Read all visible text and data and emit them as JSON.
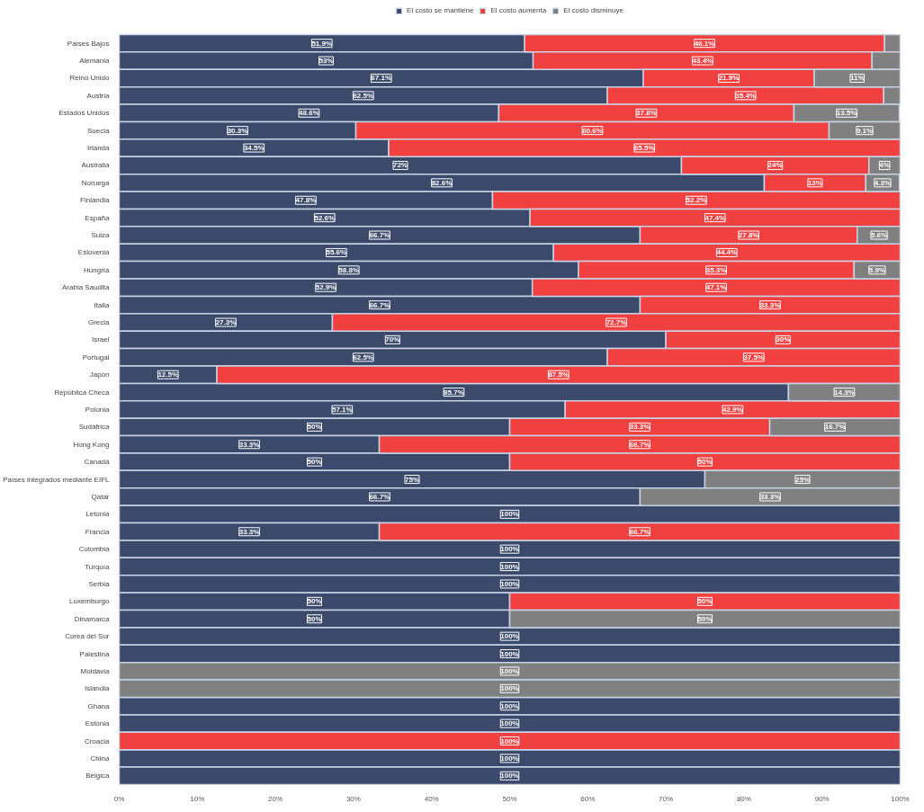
{
  "chart_data": {
    "type": "bar",
    "orientation": "horizontal",
    "stacked": true,
    "legend": "top",
    "categories": [
      "Países Bajos",
      "Alemania",
      "Reino Unido",
      "Austria",
      "Estados Unidos",
      "Suecia",
      "Irlanda",
      "Australia",
      "Noruega",
      "Finlandia",
      "España",
      "Suiza",
      "Eslovenia",
      "Hungría",
      "Arabia Saudita",
      "Italia",
      "Grecia",
      "Israel",
      "Portugal",
      "Japón",
      "República Checa",
      "Polonia",
      "Sudáfrica",
      "Hong Kong",
      "Canadá",
      "Países integrados mediante EIFL",
      "Qatar",
      "Letonia",
      "Francia",
      "Colombia",
      "Turquía",
      "Serbia",
      "Luxemburgo",
      "Dinamarca",
      "Corea del Sur",
      "Palestina",
      "Moldavia",
      "Islandia",
      "Ghana",
      "Estonia",
      "Croacia",
      "China",
      "Bélgica"
    ],
    "xlim": [
      0,
      100
    ],
    "xticks": [
      {
        "value": 0,
        "label": "0%"
      },
      {
        "value": 10,
        "label": "10%"
      },
      {
        "value": 20,
        "label": "20%"
      },
      {
        "value": 30,
        "label": "30%"
      },
      {
        "value": 40,
        "label": "40%"
      },
      {
        "value": 50,
        "label": "50%"
      },
      {
        "value": 60,
        "label": "60%"
      },
      {
        "value": 70,
        "label": "70%"
      },
      {
        "value": 80,
        "label": "80%"
      },
      {
        "value": 90,
        "label": "90%"
      },
      {
        "value": 100,
        "label": "100%"
      }
    ],
    "series": [
      {
        "name": "El costo se mantiene",
        "color": "#3b4a6b",
        "values": [
          51.9,
          53,
          67.1,
          62.5,
          48.6,
          30.3,
          34.5,
          72,
          82.6,
          47.8,
          52.6,
          66.7,
          55.6,
          58.8,
          52.9,
          66.7,
          27.3,
          70,
          62.5,
          12.5,
          85.7,
          57.1,
          50,
          33.3,
          50,
          75,
          66.7,
          100,
          33.3,
          100,
          100,
          100,
          50,
          50,
          100,
          100,
          null,
          null,
          100,
          100,
          null,
          100,
          100
        ],
        "value_labels": [
          "51.9%",
          "53%",
          "67.1%",
          "62.5%",
          "48.6%",
          "30.3%",
          "34.5%",
          "72%",
          "82.6%",
          "47.8%",
          "52.6%",
          "66.7%",
          "55.6%",
          "58.8%",
          "52.9%",
          "66.7%",
          "27.3%",
          "70%",
          "62.5%",
          "12.5%",
          "85.7%",
          "57.1%",
          "50%",
          "33.3%",
          "50%",
          "75%",
          "66.7%",
          "100%",
          "33.3%",
          "100%",
          "100%",
          "100%",
          "50%",
          "50%",
          "100%",
          "100%",
          null,
          null,
          "100%",
          "100%",
          null,
          "100%",
          "100%"
        ]
      },
      {
        "name": "El costo aumenta",
        "color": "#f04040",
        "values": [
          46.1,
          43.4,
          21.9,
          35.4,
          37.8,
          60.6,
          65.5,
          24,
          13,
          52.2,
          47.4,
          27.8,
          44.4,
          35.3,
          47.1,
          33.3,
          72.7,
          30,
          37.5,
          87.5,
          null,
          42.9,
          33.3,
          66.7,
          50,
          null,
          null,
          null,
          66.7,
          null,
          null,
          null,
          50,
          null,
          null,
          null,
          null,
          null,
          null,
          null,
          100,
          null,
          null
        ],
        "value_labels": [
          "46.1%",
          "43.4%",
          "21.9%",
          "35.4%",
          "37.8%",
          "60.6%",
          "65.5%",
          "24%",
          "13%",
          "52.2%",
          "47.4%",
          "27.8%",
          "44.4%",
          "35.3%",
          "47.1%",
          "33.3%",
          "72.7%",
          "30%",
          "37.5%",
          "87.5%",
          null,
          "42.9%",
          "33.3%",
          "66.7%",
          "50%",
          null,
          null,
          null,
          "66.7%",
          null,
          null,
          null,
          "50%",
          null,
          null,
          null,
          null,
          null,
          null,
          null,
          "100%",
          null,
          null
        ]
      },
      {
        "name": "El costo disminuye",
        "color": "#808080",
        "values": [
          2,
          3.6,
          11,
          2.1,
          13.5,
          9.1,
          null,
          4,
          4.3,
          null,
          null,
          5.6,
          null,
          5.9,
          null,
          null,
          null,
          null,
          null,
          null,
          14.3,
          null,
          16.7,
          null,
          null,
          25,
          33.3,
          null,
          null,
          null,
          null,
          null,
          null,
          50,
          null,
          null,
          100,
          100,
          null,
          null,
          null,
          null,
          null
        ],
        "value_labels": [
          null,
          null,
          "11%",
          null,
          "13.5%",
          "9.1%",
          null,
          "4%",
          "4.3%",
          null,
          null,
          "5.6%",
          null,
          "5.9%",
          null,
          null,
          null,
          null,
          null,
          null,
          "14.3%",
          null,
          "16.7%",
          null,
          null,
          "25%",
          "33.3%",
          null,
          null,
          null,
          null,
          null,
          null,
          "50%",
          null,
          null,
          "100%",
          "100%",
          null,
          null,
          null,
          null,
          null
        ]
      }
    ]
  }
}
